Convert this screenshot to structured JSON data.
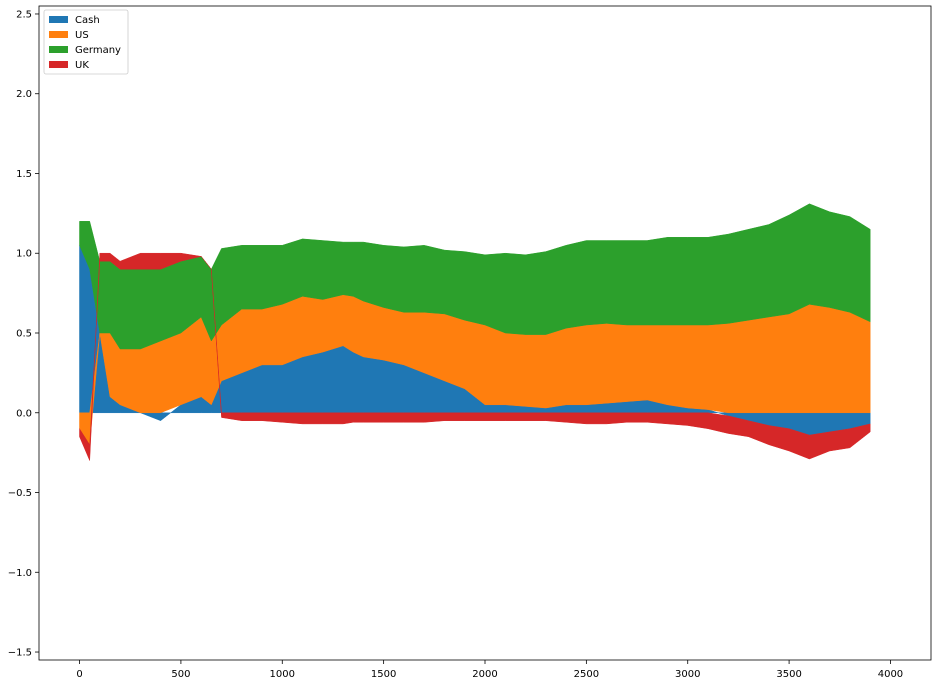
{
  "chart_data": {
    "type": "area",
    "stacked": true,
    "title": "",
    "xlabel": "",
    "ylabel": "",
    "xlim": [
      -200,
      4200
    ],
    "ylim": [
      -1.55,
      2.55
    ],
    "xticks": [
      0,
      500,
      1000,
      1500,
      2000,
      2500,
      3000,
      3500,
      4000
    ],
    "yticks": [
      -1.5,
      -1.0,
      -0.5,
      0.0,
      0.5,
      1.0,
      1.5,
      2.0,
      2.5
    ],
    "xtick_labels": [
      "0",
      "500",
      "1000",
      "1500",
      "2000",
      "2500",
      "3000",
      "3500",
      "4000"
    ],
    "ytick_labels": [
      "−1.5",
      "−1.0",
      "−0.5",
      "0.0",
      "0.5",
      "1.0",
      "1.5",
      "2.0",
      "2.5"
    ],
    "grid": false,
    "legend_position": "upper-left",
    "x": [
      0,
      50,
      100,
      150,
      200,
      300,
      400,
      500,
      600,
      650,
      700,
      800,
      900,
      1000,
      1100,
      1200,
      1300,
      1350,
      1400,
      1500,
      1600,
      1700,
      1800,
      1900,
      2000,
      2100,
      2200,
      2300,
      2400,
      2500,
      2600,
      2700,
      2800,
      2900,
      3000,
      3100,
      3200,
      3300,
      3400,
      3500,
      3600,
      3700,
      3800,
      3900
    ],
    "series": [
      {
        "name": "Cash",
        "color": "#1f77b4",
        "values": [
          1.05,
          0.9,
          0.5,
          0.1,
          0.05,
          0.0,
          -0.05,
          0.05,
          0.1,
          0.05,
          0.2,
          0.25,
          0.3,
          0.3,
          0.35,
          0.38,
          0.42,
          0.38,
          0.35,
          0.33,
          0.3,
          0.25,
          0.2,
          0.15,
          0.05,
          0.05,
          0.04,
          0.03,
          0.05,
          0.05,
          0.06,
          0.07,
          0.08,
          0.05,
          0.03,
          0.02,
          -0.02,
          -0.05,
          -0.08,
          -0.1,
          -0.14,
          -0.12,
          -0.1,
          -0.07
        ]
      },
      {
        "name": "US",
        "color": "#ff7f0e",
        "values": [
          -0.1,
          -0.2,
          0.0,
          0.4,
          0.35,
          0.4,
          0.45,
          0.45,
          0.5,
          0.4,
          0.35,
          0.4,
          0.35,
          0.38,
          0.38,
          0.33,
          0.32,
          0.35,
          0.35,
          0.33,
          0.33,
          0.38,
          0.42,
          0.43,
          0.5,
          0.45,
          0.45,
          0.46,
          0.48,
          0.5,
          0.5,
          0.48,
          0.47,
          0.5,
          0.52,
          0.53,
          0.56,
          0.58,
          0.6,
          0.62,
          0.68,
          0.66,
          0.63,
          0.57
        ]
      },
      {
        "name": "Germany",
        "color": "#2ca02c",
        "values": [
          0.15,
          0.3,
          0.45,
          0.45,
          0.5,
          0.5,
          0.45,
          0.45,
          0.38,
          0.45,
          0.48,
          0.4,
          0.4,
          0.37,
          0.36,
          0.37,
          0.33,
          0.34,
          0.37,
          0.39,
          0.41,
          0.42,
          0.4,
          0.43,
          0.44,
          0.5,
          0.5,
          0.52,
          0.52,
          0.53,
          0.52,
          0.53,
          0.53,
          0.55,
          0.55,
          0.55,
          0.56,
          0.57,
          0.58,
          0.62,
          0.63,
          0.6,
          0.6,
          0.58
        ]
      },
      {
        "name": "UK",
        "color": "#d62728",
        "values": [
          -0.05,
          -0.1,
          0.05,
          0.05,
          0.05,
          0.1,
          0.1,
          0.05,
          0.0,
          0.0,
          -0.03,
          -0.05,
          -0.05,
          -0.06,
          -0.07,
          -0.07,
          -0.07,
          -0.06,
          -0.06,
          -0.06,
          -0.06,
          -0.06,
          -0.05,
          -0.05,
          -0.05,
          -0.05,
          -0.05,
          -0.05,
          -0.06,
          -0.07,
          -0.07,
          -0.06,
          -0.06,
          -0.07,
          -0.08,
          -0.1,
          -0.11,
          -0.1,
          -0.12,
          -0.14,
          -0.15,
          -0.12,
          -0.12,
          -0.05
        ]
      }
    ]
  }
}
